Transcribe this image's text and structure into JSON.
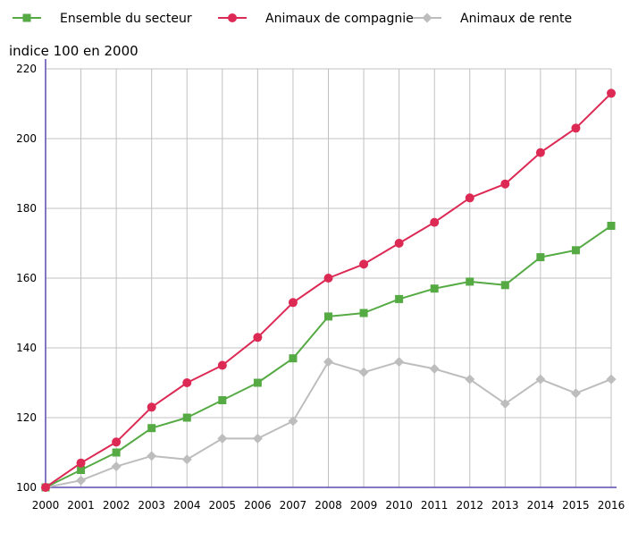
{
  "chart_data": {
    "type": "line",
    "title": "",
    "ylabel": "indice 100 en 2000",
    "xlabel": "",
    "x": [
      "2000",
      "2001",
      "2002",
      "2003",
      "2004",
      "2005",
      "2006",
      "2007",
      "2008",
      "2009",
      "2010",
      "2011",
      "2012",
      "2013",
      "2014",
      "2015",
      "2016"
    ],
    "ylim": [
      100,
      220
    ],
    "yticks": [
      100,
      120,
      140,
      160,
      180,
      200,
      220
    ],
    "grid": true,
    "legend_position": "top",
    "series": [
      {
        "name": "Ensemble du secteur",
        "color": "#55aa44",
        "marker": "square",
        "values": [
          100,
          105,
          110,
          117,
          120,
          125,
          130,
          137,
          149,
          150,
          154,
          157,
          159,
          158,
          166,
          168,
          175
        ]
      },
      {
        "name": "Animaux de compagnie",
        "color": "#dd2a55",
        "marker": "circle",
        "values": [
          100,
          107,
          113,
          123,
          130,
          135,
          143,
          153,
          160,
          164,
          170,
          176,
          183,
          187,
          196,
          203,
          213
        ]
      },
      {
        "name": "Animaux de rente",
        "color": "#bdbdbd",
        "marker": "diamond",
        "values": [
          100,
          102,
          106,
          109,
          108,
          114,
          114,
          119,
          136,
          133,
          136,
          134,
          131,
          124,
          131,
          127,
          131
        ]
      }
    ]
  }
}
